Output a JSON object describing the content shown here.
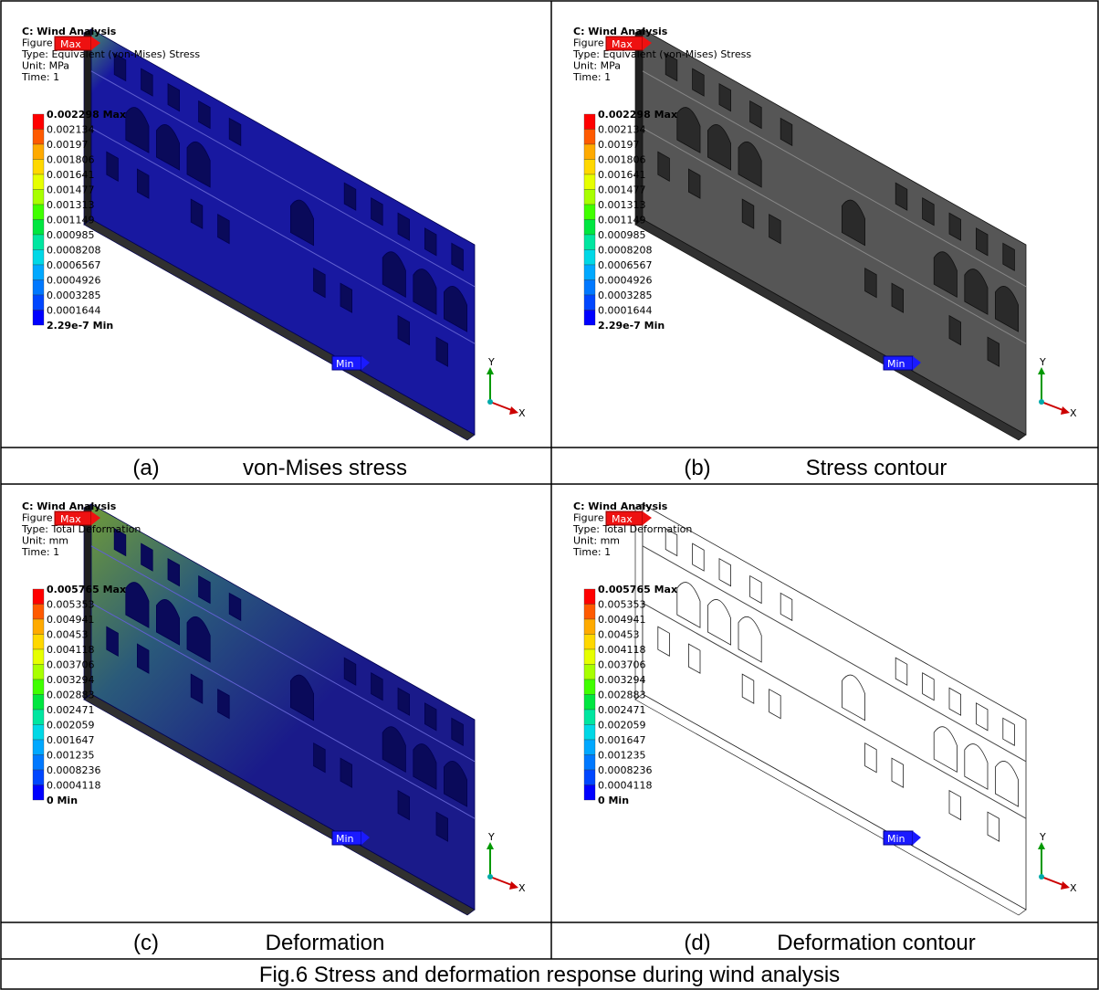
{
  "panels": [
    {
      "header": [
        "C: Wind Analysis",
        "Figure",
        "Type: Equivalent (von-Mises) Stress",
        "Unit: MPa",
        "Time: 1"
      ],
      "legend": [
        "0.002298 Max",
        "0.002134",
        "0.00197",
        "0.001806",
        "0.001641",
        "0.001477",
        "0.001313",
        "0.001149",
        "0.000985",
        "0.0008208",
        "0.0006567",
        "0.0004926",
        "0.0003285",
        "0.0001644",
        "2.29e-7 Min"
      ],
      "max_label": "Max",
      "min_label": "Min",
      "axes": [
        "Y",
        "X"
      ],
      "caption": {
        "letter": "(a)",
        "text": "von-Mises stress"
      }
    },
    {
      "header": [
        "C: Wind Analysis",
        "Figure",
        "Type: Equivalent (von-Mises) Stress",
        "Unit: MPa",
        "Time: 1"
      ],
      "legend": [
        "0.002298 Max",
        "0.002134",
        "0.00197",
        "0.001806",
        "0.001641",
        "0.001477",
        "0.001313",
        "0.001149",
        "0.000985",
        "0.0008208",
        "0.0006567",
        "0.0004926",
        "0.0003285",
        "0.0001644",
        "2.29e-7 Min"
      ],
      "max_label": "Max",
      "min_label": "Min",
      "axes": [
        "Y",
        "X"
      ],
      "caption": {
        "letter": "(b)",
        "text": "Stress contour"
      }
    },
    {
      "header": [
        "C: Wind Analysis",
        "Figure",
        "Type: Total Deformation",
        "Unit: mm",
        "Time: 1"
      ],
      "legend": [
        "0.005765 Max",
        "0.005353",
        "0.004941",
        "0.00453",
        "0.004118",
        "0.003706",
        "0.003294",
        "0.002883",
        "0.002471",
        "0.002059",
        "0.001647",
        "0.001235",
        "0.0008236",
        "0.0004118",
        "0 Min"
      ],
      "max_label": "Max",
      "min_label": "Min",
      "axes": [
        "Y",
        "X"
      ],
      "caption": {
        "letter": "(c)",
        "text": "Deformation"
      }
    },
    {
      "header": [
        "C: Wind Analysis",
        "Figure",
        "Type: Total Deformation",
        "Unit: mm",
        "Time: 1"
      ],
      "legend": [
        "0.005765 Max",
        "0.005353",
        "0.004941",
        "0.00453",
        "0.004118",
        "0.003706",
        "0.003294",
        "0.002883",
        "0.002471",
        "0.002059",
        "0.001647",
        "0.001235",
        "0.0008236",
        "0.0004118",
        "0 Min"
      ],
      "max_label": "Max",
      "min_label": "Min",
      "axes": [
        "Y",
        "X"
      ],
      "caption": {
        "letter": "(d)",
        "text": "Deformation contour"
      }
    }
  ],
  "figure_caption": "Fig.6 Stress and deformation response during wind analysis"
}
